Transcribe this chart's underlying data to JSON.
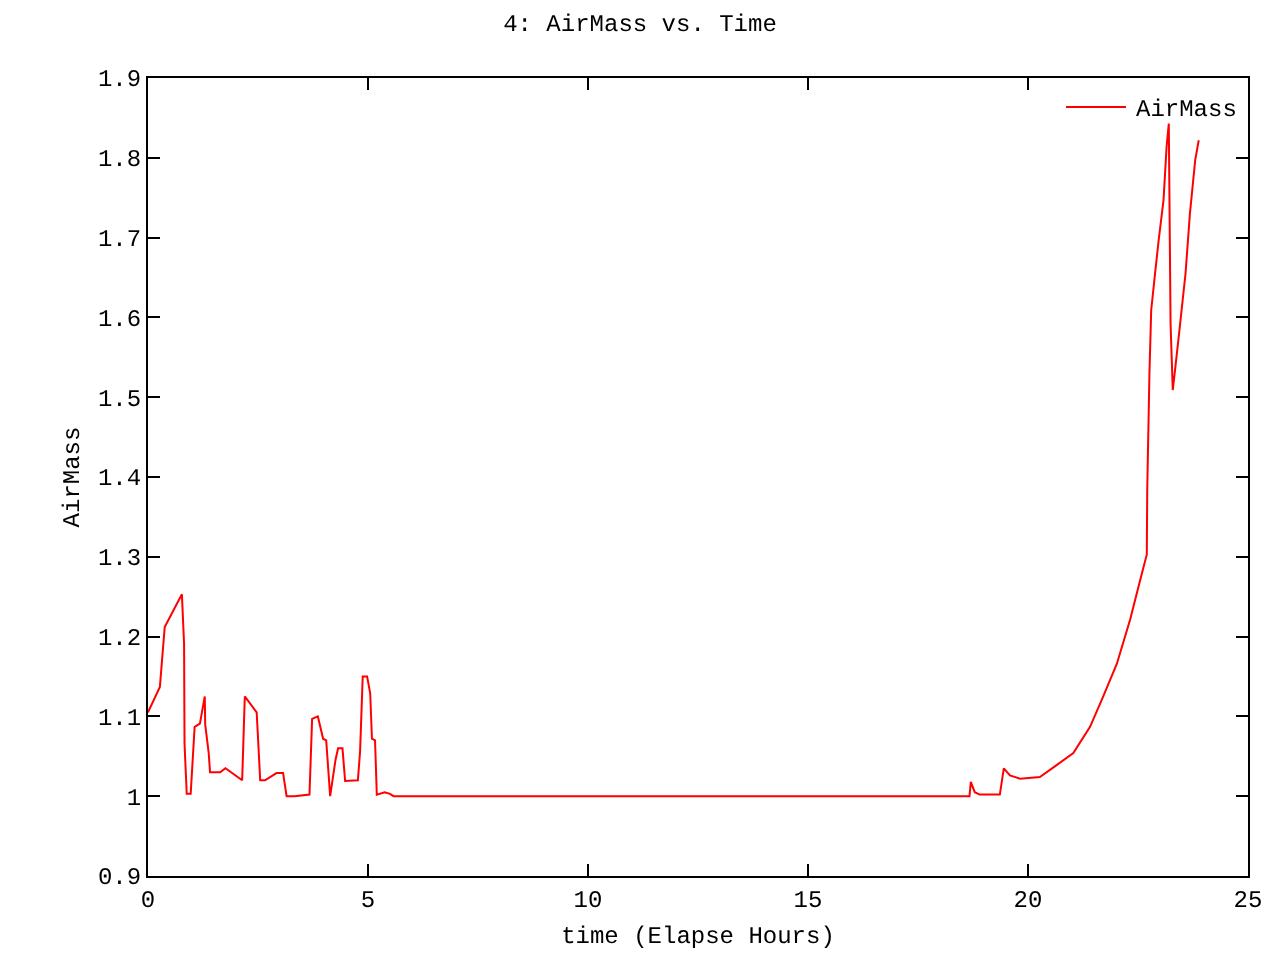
{
  "chart_data": {
    "type": "line",
    "title": "4: AirMass vs. Time",
    "xlabel": "time (Elapse Hours)",
    "ylabel": "AirMass",
    "x": [
      0,
      0.27,
      0.38,
      0.77,
      0.82,
      0.83,
      0.88,
      0.97,
      1.06,
      1.18,
      1.29,
      1.3,
      1.38,
      1.41,
      1.64,
      1.76,
      2.14,
      2.2,
      2.47,
      2.55,
      2.66,
      2.92,
      3.07,
      3.15,
      3.33,
      3.67,
      3.73,
      3.86,
      3.98,
      4.05,
      4.14,
      4.26,
      4.32,
      4.42,
      4.48,
      4.77,
      4.82,
      4.88,
      4.98,
      5.05,
      5.09,
      5.16,
      5.2,
      5.38,
      5.5,
      5.58,
      18.67,
      18.7,
      18.79,
      18.9,
      19.36,
      19.45,
      19.59,
      19.82,
      20.27,
      20.65,
      21.03,
      21.41,
      21.71,
      22.02,
      22.32,
      22.55,
      22.7,
      22.71,
      22.76,
      22.8,
      22.88,
      22.97,
      23.08,
      23.15,
      23.2,
      23.24,
      23.29,
      23.35,
      23.45,
      23.58,
      23.68,
      23.8,
      23.88
    ],
    "series": [
      {
        "name": "AirMass",
        "color": "#ff0000",
        "values": [
          1.105,
          1.137,
          1.212,
          1.253,
          1.191,
          1.066,
          1.003,
          1.003,
          1.087,
          1.091,
          1.125,
          1.09,
          1.054,
          1.03,
          1.03,
          1.035,
          1.02,
          1.125,
          1.105,
          1.02,
          1.02,
          1.029,
          1.029,
          1.0,
          1.0,
          1.002,
          1.097,
          1.1,
          1.072,
          1.07,
          1.0,
          1.045,
          1.06,
          1.06,
          1.019,
          1.02,
          1.056,
          1.15,
          1.15,
          1.129,
          1.072,
          1.07,
          1.002,
          1.005,
          1.003,
          1.0,
          1.0,
          1.018,
          1.005,
          1.002,
          1.002,
          1.035,
          1.026,
          1.022,
          1.024,
          1.039,
          1.054,
          1.087,
          1.125,
          1.166,
          1.221,
          1.271,
          1.303,
          1.384,
          1.53,
          1.609,
          1.651,
          1.697,
          1.747,
          1.814,
          1.843,
          1.592,
          1.509,
          1.538,
          1.588,
          1.655,
          1.73,
          1.797,
          1.822
        ]
      }
    ],
    "xlim": [
      0,
      25
    ],
    "xticks": [
      0,
      5,
      10,
      15,
      20,
      25
    ],
    "ylim": [
      0.9,
      1.9
    ],
    "yticks": [
      0.9,
      1,
      1.1,
      1.2,
      1.3,
      1.4,
      1.5,
      1.6,
      1.7,
      1.8,
      1.9
    ],
    "grid": false,
    "legend": "top right",
    "marker": "none",
    "line_style": "solid"
  }
}
